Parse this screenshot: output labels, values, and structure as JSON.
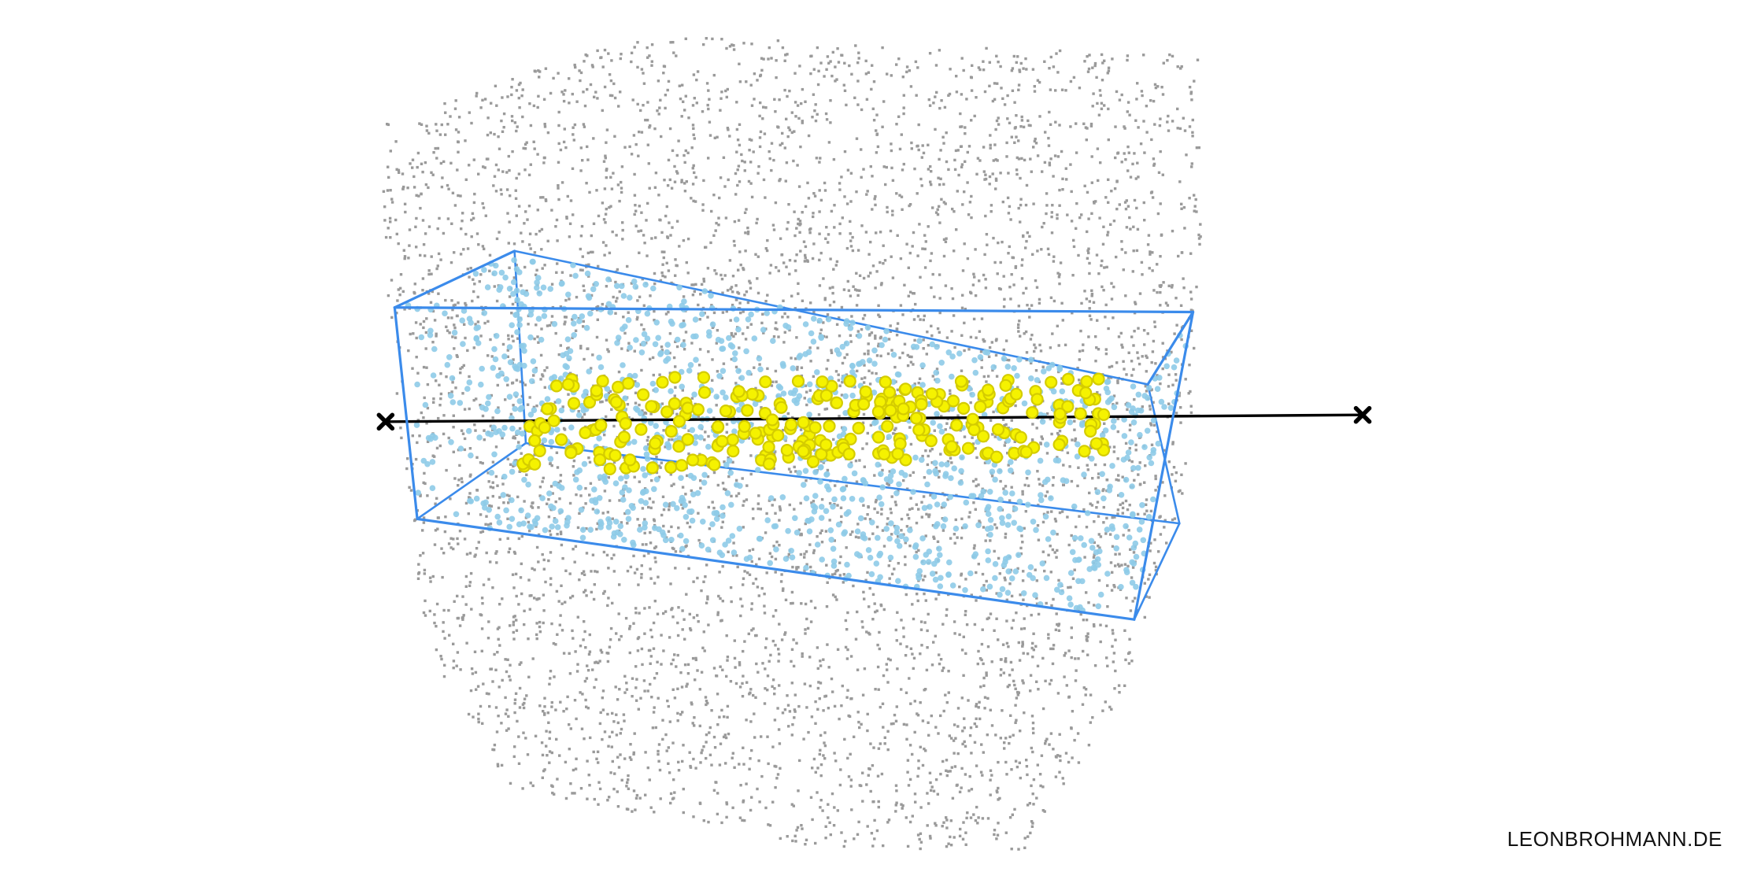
{
  "credit": "LEONBROHMANN.DE",
  "scene": {
    "colors": {
      "background_points": "#9a9a9a",
      "box_points": "#8ecbe8",
      "near_points_fill": "#f5f200",
      "near_points_ring": "#d4cc00",
      "box_edges": "#3b8beb",
      "ray": "#000000"
    },
    "icons": [
      "cross-marker-icon"
    ]
  }
}
